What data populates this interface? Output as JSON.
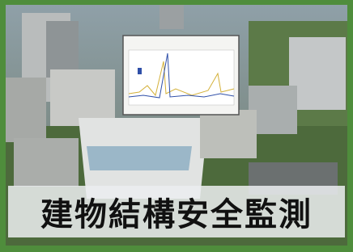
{
  "caption": "建物結構安全監測"
}
